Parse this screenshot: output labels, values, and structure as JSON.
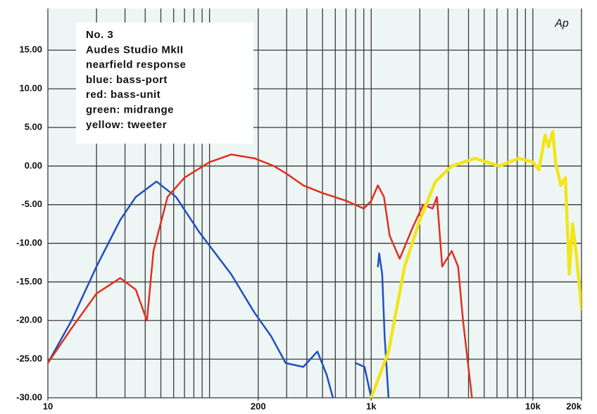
{
  "chart_data": {
    "type": "line",
    "log_x": true,
    "annotations": [
      "No. 3",
      "Audes Studio MkII",
      "nearfield response",
      "blue: bass-port",
      "red: bass-unit",
      "green: midrange",
      "yellow: tweeter"
    ],
    "logo": "Ap",
    "xlim": [
      10,
      20000
    ],
    "ylim": [
      -30,
      20.4
    ],
    "xticks": [
      10,
      200,
      {
        "value": 1000,
        "label": "1k"
      },
      {
        "value": 10000,
        "label": "10k"
      },
      {
        "value": 20000,
        "label": "20k"
      }
    ],
    "xgrid": [
      10,
      20,
      30,
      40,
      50,
      60,
      70,
      80,
      90,
      100,
      200,
      300,
      400,
      500,
      600,
      700,
      800,
      900,
      1000,
      2000,
      3000,
      4000,
      5000,
      6000,
      7000,
      8000,
      9000,
      10000,
      20000
    ],
    "yticks": [
      {
        "value": 15,
        "label": "15.00"
      },
      {
        "value": 10,
        "label": "10.00"
      },
      {
        "value": 5,
        "label": "5.00"
      },
      {
        "value": 0,
        "label": "0.00"
      },
      {
        "value": -5,
        "label": "-5.00"
      },
      {
        "value": -10,
        "label": "-10.00"
      },
      {
        "value": -15,
        "label": "-15.00"
      },
      {
        "value": -20,
        "label": "-20.00"
      },
      {
        "value": -25,
        "label": "-25.00"
      },
      {
        "value": -30,
        "label": "-30.00"
      }
    ],
    "grid": true,
    "series": [
      {
        "color": "#1f4fbf",
        "width": 2.5,
        "x": [
          10,
          14,
          20,
          28,
          35,
          47,
          62,
          86,
          136,
          190,
          240,
          296,
          380,
          465,
          530,
          580,
          690,
          800,
          910,
          1000,
          1050,
          1100,
          1120,
          1170,
          1210,
          1280,
          1430,
          1500
        ],
        "values": [
          -25.5,
          -20,
          -13,
          -7,
          -4,
          -2,
          -4,
          -8.5,
          -14,
          -19,
          -22,
          -25.5,
          -26,
          -24,
          -27,
          -30,
          null,
          -25.5,
          -26,
          -30,
          null,
          -13,
          -11.3,
          -14,
          -22,
          -30,
          null,
          -30
        ]
      },
      {
        "color": "#e0301e",
        "width": 2.5,
        "x": [
          10,
          14,
          20,
          28,
          35,
          41,
          45,
          55,
          70,
          100,
          136,
          190,
          250,
          300,
          380,
          500,
          700,
          900,
          1000,
          1100,
          1200,
          1300,
          1500,
          1800,
          2100,
          2400,
          2550,
          2750,
          3150,
          3450,
          3700,
          4200
        ],
        "values": [
          -25.5,
          -21,
          -16.5,
          -14.5,
          -16,
          -20,
          -11,
          -4,
          -1.5,
          0.5,
          1.5,
          1,
          0,
          -1,
          -2.5,
          -3.5,
          -4.5,
          -5.5,
          -4.5,
          -2.5,
          -4,
          -9,
          -12,
          -8,
          -5,
          -5.5,
          -4,
          -13,
          -11,
          -13,
          -20,
          -30
        ]
      },
      {
        "color": "#f2e51a",
        "width": 4.5,
        "x": [
          1000,
          1280,
          1610,
          2000,
          2500,
          3150,
          4400,
          6200,
          8200,
          10000,
          10900,
          11900,
          12500,
          13300,
          13800,
          14900,
          15900,
          16800,
          17600,
          18700,
          20000
        ],
        "values": [
          -30,
          -24,
          -13,
          -7,
          -2,
          0,
          1,
          0,
          1,
          0.5,
          -0.5,
          4,
          2.5,
          4.5,
          0.5,
          -2.5,
          -1.5,
          -14,
          -7.5,
          -12,
          -18.5
        ]
      }
    ]
  }
}
